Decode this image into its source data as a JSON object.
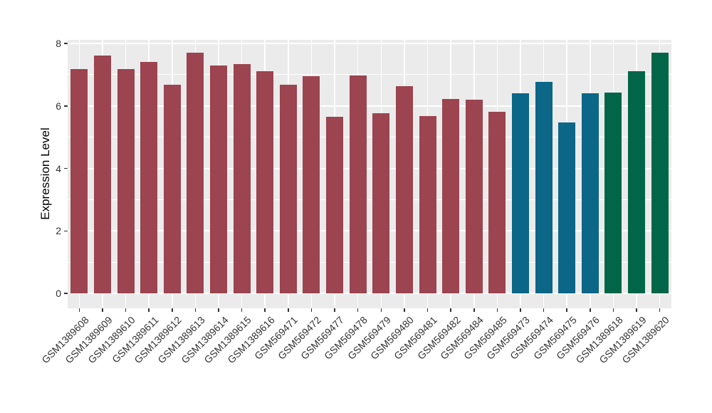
{
  "figure": {
    "background_color": "#FFFFFF",
    "panel_background_color": "#EBEBEB",
    "gridline_color": "#FFFFFF",
    "axis_text_color": "#333333",
    "axis_title_color": "#000000",
    "tick_mark_color": "#333333"
  },
  "chart_data": {
    "type": "bar",
    "title": "",
    "xlabel": "",
    "ylabel": "Expression Level",
    "ylim": [
      0,
      8.08
    ],
    "yticks": [
      0,
      2,
      4,
      6,
      8
    ],
    "yticks_minor": [
      1,
      3,
      5,
      7
    ],
    "grid": "on",
    "legend_position": "none",
    "categories": [
      "GSM1389608",
      "GSM1389609",
      "GSM1389610",
      "GSM1389611",
      "GSM1389612",
      "GSM1389613",
      "GSM1389614",
      "GSM1389615",
      "GSM1389616",
      "GSM569471",
      "GSM569472",
      "GSM569477",
      "GSM569478",
      "GSM569479",
      "GSM569480",
      "GSM569481",
      "GSM569482",
      "GSM569484",
      "GSM569485",
      "GSM569473",
      "GSM569474",
      "GSM569475",
      "GSM569476",
      "GSM1389618",
      "GSM1389619",
      "GSM1389620"
    ],
    "values": [
      7.19,
      7.61,
      7.17,
      7.4,
      6.68,
      7.7,
      7.29,
      7.34,
      7.11,
      6.67,
      6.95,
      5.65,
      6.97,
      5.76,
      6.63,
      5.68,
      6.22,
      6.2,
      5.82,
      6.4,
      6.78,
      5.46,
      6.4,
      6.43,
      7.11,
      7.7
    ],
    "groups": [
      "red",
      "red",
      "red",
      "red",
      "red",
      "red",
      "red",
      "red",
      "red",
      "red",
      "red",
      "red",
      "red",
      "red",
      "red",
      "red",
      "red",
      "red",
      "red",
      "blue",
      "blue",
      "blue",
      "blue",
      "green",
      "green",
      "green"
    ],
    "palette": {
      "red": "#9C4450",
      "blue": "#0B6688",
      "green": "#016647"
    }
  }
}
